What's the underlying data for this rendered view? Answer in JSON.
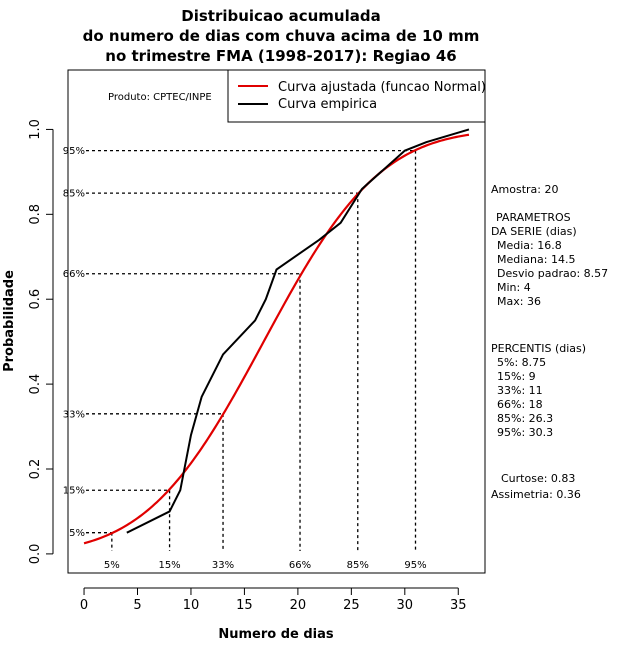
{
  "title_lines": [
    "Distribuicao acumulada",
    "do numero de dias com chuva acima de 10 mm",
    "no trimestre FMA (1998-2017): Regiao 46"
  ],
  "producer": "Produto: CPTEC/INPE",
  "sample": "Amostra: 20",
  "params": {
    "header": "PARAMETROS",
    "subheader": "DA SERIE (dias)",
    "lines": [
      "Media: 16.8",
      "Mediana: 14.5",
      "Desvio padrao: 8.57",
      "Min: 4",
      "Max: 36"
    ]
  },
  "percentis": {
    "header": "PERCENTIS (dias)",
    "lines": [
      "5%: 8.75",
      "15%: 9",
      "33%: 11",
      "66%: 18",
      "85%: 26.3",
      "95%: 30.3"
    ]
  },
  "shape": {
    "curtose": "Curtose: 0.83",
    "assimetria": "Assimetria: 0.36"
  },
  "colors": {
    "fitted": "#e00000",
    "empirical": "#000000"
  },
  "chart_data": {
    "type": "line",
    "xlabel": "Numero de dias",
    "ylabel": "Probabilidade",
    "xlim": [
      -1.5,
      37.5
    ],
    "ylim": [
      -0.045,
      1.14
    ],
    "xticks": [
      0,
      5,
      10,
      15,
      20,
      25,
      30,
      35
    ],
    "yticks": [
      0.0,
      0.2,
      0.4,
      0.6,
      0.8,
      1.0
    ],
    "ytick_labels": [
      "0.0",
      "0.2",
      "0.4",
      "0.6",
      "0.8",
      "1.0"
    ],
    "series": [
      {
        "name": "Curva ajustada (funcao Normal)",
        "kind": "normal_cdf",
        "mean": 16.8,
        "sd": 8.57,
        "x_range": [
          0,
          36
        ],
        "color": "#e00000"
      },
      {
        "name": "Curva empirica",
        "kind": "empirical",
        "color": "#000000",
        "x": [
          4,
          8,
          9,
          10,
          11,
          13,
          16,
          17,
          18,
          22,
          24,
          26,
          30,
          32,
          36
        ],
        "y": [
          0.05,
          0.1,
          0.15,
          0.28,
          0.37,
          0.47,
          0.55,
          0.6,
          0.67,
          0.74,
          0.78,
          0.86,
          0.95,
          0.97,
          1.0
        ]
      }
    ],
    "percentile_markers": [
      {
        "label": "5%",
        "p": 0.05,
        "x": 2.6
      },
      {
        "label": "15%",
        "p": 0.15,
        "x": 8.0
      },
      {
        "label": "33%",
        "p": 0.33,
        "x": 13.0
      },
      {
        "label": "66%",
        "p": 0.66,
        "x": 20.2
      },
      {
        "label": "85%",
        "p": 0.85,
        "x": 25.6
      },
      {
        "label": "95%",
        "p": 0.95,
        "x": 31.0
      }
    ]
  }
}
